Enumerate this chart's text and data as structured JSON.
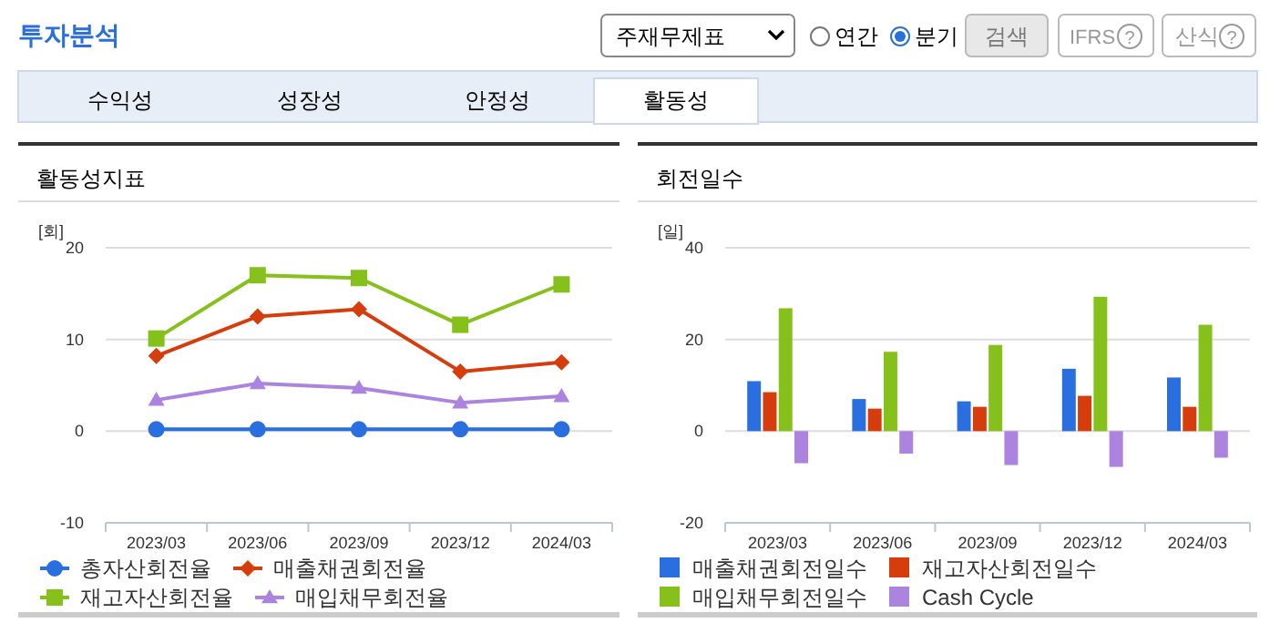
{
  "chart_data": [
    {
      "type": "other",
      "title": "투자분석",
      "annotations": [
        "주재무제표",
        "연간",
        "분기",
        "검색",
        "IFRS",
        "?",
        "산식",
        "?",
        "수익성",
        "성장성",
        "안정성",
        "활동성"
      ]
    },
    {
      "type": "line",
      "title": "활동성지표",
      "ylabel": "[회]",
      "categories": [
        "2023/03",
        "2023/06",
        "2023/09",
        "2023/12",
        "2024/03"
      ],
      "ylim": [
        -10,
        20
      ],
      "yticks": [
        -10,
        0,
        10,
        20
      ],
      "grid": "y",
      "legend": "bottom",
      "line_style": "solid",
      "series": [
        {
          "name": "총자산회전율",
          "color": "#2a6fe0",
          "marker": "circle",
          "values": [
            0.2,
            0.2,
            0.2,
            0.2,
            0.2
          ]
        },
        {
          "name": "매출채권회전율",
          "color": "#d63c0c",
          "marker": "diamond",
          "values": [
            8.2,
            12.5,
            13.3,
            6.5,
            7.5
          ]
        },
        {
          "name": "재고자산회전율",
          "color": "#86c01a",
          "marker": "square",
          "values": [
            10.1,
            17.0,
            16.7,
            11.6,
            16.0
          ]
        },
        {
          "name": "매입채무회전율",
          "color": "#ac84df",
          "marker": "triangle",
          "values": [
            3.4,
            5.2,
            4.7,
            3.1,
            3.8
          ]
        }
      ]
    },
    {
      "type": "bar",
      "title": "회전일수",
      "ylabel": "[일]",
      "categories": [
        "2023/03",
        "2023/06",
        "2023/09",
        "2023/12",
        "2024/03"
      ],
      "ylim": [
        -20,
        40
      ],
      "yticks": [
        -20,
        0,
        20,
        40
      ],
      "grid": "y",
      "legend": "bottom",
      "series": [
        {
          "name": "매출채권회전일수",
          "color": "#2a6fe0",
          "values": [
            10.9,
            7.0,
            6.5,
            13.6,
            11.7
          ]
        },
        {
          "name": "재고자산회전일수",
          "color": "#d63c0c",
          "values": [
            8.5,
            4.9,
            5.3,
            7.7,
            5.3
          ]
        },
        {
          "name": "매입채무회전일수",
          "color": "#86c01a",
          "values": [
            26.8,
            17.3,
            18.8,
            29.3,
            23.2
          ]
        },
        {
          "name": "Cash Cycle",
          "color": "#ac84df",
          "values": [
            -7.0,
            -4.9,
            -7.4,
            -7.8,
            -5.8
          ]
        }
      ]
    }
  ]
}
